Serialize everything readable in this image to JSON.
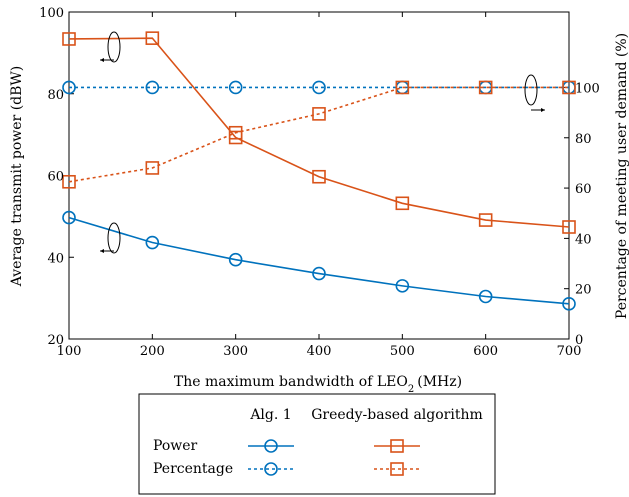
{
  "chart_data": {
    "type": "line",
    "title": "",
    "xlabel": "The maximum bandwidth of LEO",
    "xlabel_sub": "2",
    "xlabel_unit": "(MHz)",
    "ylabel_left": "Average transmit power (dBW)",
    "ylabel_right": "Percentage of meeting user demand (%)",
    "x": [
      100,
      200,
      300,
      400,
      500,
      600,
      700
    ],
    "xlim": [
      100,
      700
    ],
    "ylim_left": [
      20,
      100
    ],
    "ylim_right": [
      0,
      130
    ],
    "xticks": [
      "100",
      "200",
      "300",
      "400",
      "500",
      "600",
      "700"
    ],
    "yticks_left": [
      "20",
      "40",
      "60",
      "80",
      "100"
    ],
    "yticks_right": [
      "0",
      "20",
      "40",
      "60",
      "80",
      "100"
    ],
    "legend": {
      "placement": "bottom-center",
      "columns": [
        "Alg. 1",
        "Greedy-based algorithm"
      ],
      "rows": [
        "Power",
        "Percentage"
      ]
    },
    "series": [
      {
        "algorithm": "Alg. 1",
        "metric": "Power",
        "axis": "left",
        "marker": "circle",
        "style": "solid",
        "color": "#0072BD",
        "values": [
          49.7,
          43.6,
          39.4,
          36.0,
          33.0,
          30.4,
          28.6
        ]
      },
      {
        "algorithm": "Alg. 1",
        "metric": "Percentage",
        "axis": "right",
        "marker": "circle",
        "style": "dotted",
        "color": "#0072BD",
        "values": [
          100,
          100,
          100,
          100,
          100,
          100,
          100
        ]
      },
      {
        "algorithm": "Greedy-based algorithm",
        "metric": "Power",
        "axis": "left",
        "marker": "square",
        "style": "solid",
        "color": "#D95319",
        "values": [
          93.4,
          93.6,
          69.3,
          59.7,
          53.2,
          49.1,
          47.4
        ]
      },
      {
        "algorithm": "Greedy-based algorithm",
        "metric": "Percentage",
        "axis": "right",
        "marker": "square",
        "style": "dotted",
        "color": "#D95319",
        "values": [
          62.5,
          68.0,
          82.0,
          89.5,
          100,
          100,
          100
        ]
      }
    ]
  }
}
